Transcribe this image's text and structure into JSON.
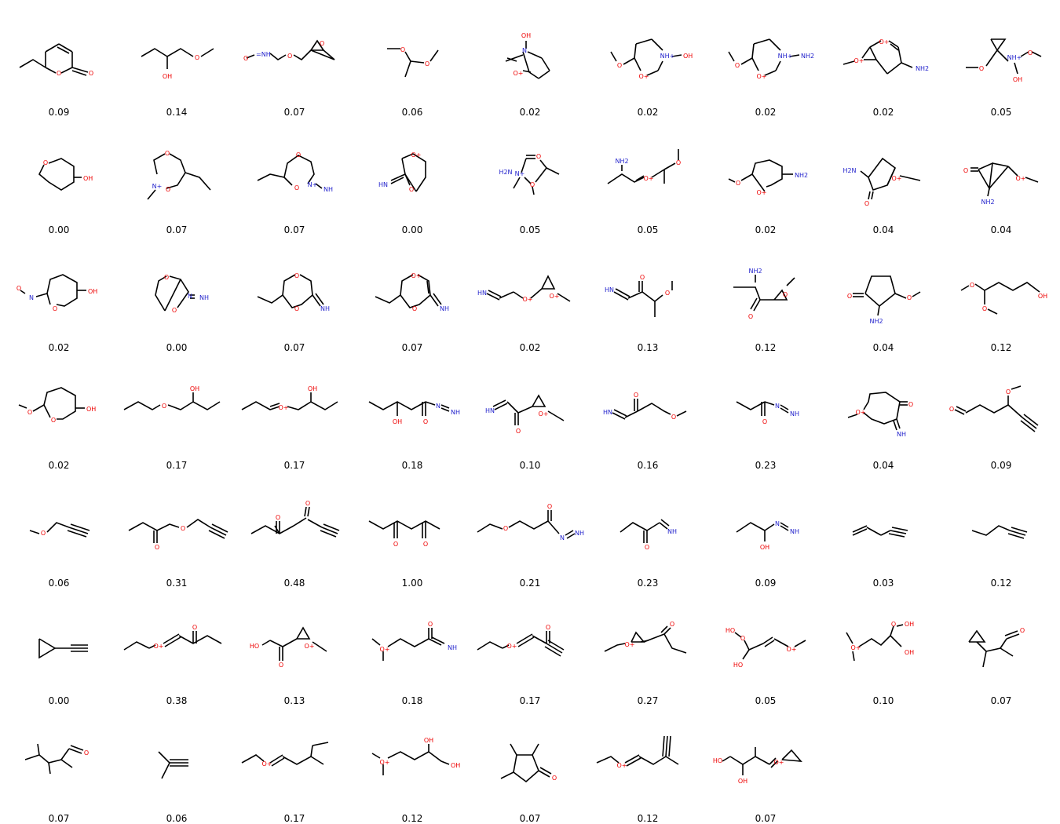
{
  "grid": {
    "columns": 9,
    "molecules": [
      {
        "score": "0.09",
        "structure": "6-ethyl-5,6-dihydro-2H-pyran-2-one"
      },
      {
        "score": "0.14",
        "structure": "1-methoxybutan-2-ol"
      },
      {
        "score": "0.07",
        "structure": "nitroso-methyl oxiranylmethyl ether"
      },
      {
        "score": "0.06",
        "structure": "1,1-dimethoxyethane"
      },
      {
        "score": "0.02",
        "structure": "bicyclic N-hydroxy oxazinane"
      },
      {
        "score": "0.02",
        "structure": "methoxy oxazinane N-OH"
      },
      {
        "score": "0.02",
        "structure": "methoxy oxazinane N-NH2"
      },
      {
        "score": "0.02",
        "structure": "bicyclic amino dioxane"
      },
      {
        "score": "0.05",
        "structure": "cyclopropyl methoxy hydroxylamine"
      },
      {
        "score": "0.00",
        "structure": "tetrahydropyran-3-ol"
      },
      {
        "score": "0.07",
        "structure": "ethyl oxadiazinane methylene"
      },
      {
        "score": "0.07",
        "structure": "ethyl oxadiazinane imine"
      },
      {
        "score": "0.00",
        "structure": "bicyclic epoxy lactim"
      },
      {
        "score": "0.05",
        "structure": "amino methyl oxazetidine"
      },
      {
        "score": "0.05",
        "structure": "aminopropyl oxonium ether"
      },
      {
        "score": "0.02",
        "structure": "methoxy amino dihydropyran"
      },
      {
        "score": "0.04",
        "structure": "amino epoxy cyclopentanone"
      },
      {
        "score": "0.04",
        "structure": "amino bicyclic epoxy ketone"
      },
      {
        "score": "0.02",
        "structure": "N-nitroso tetrahydropyranol"
      },
      {
        "score": "0.00",
        "structure": "bicyclic dioxazine imine"
      },
      {
        "score": "0.07",
        "structure": "ethyl dioxane imine"
      },
      {
        "score": "0.07",
        "structure": "ethyl dioxinium imine"
      },
      {
        "score": "0.02",
        "structure": "imino vinyl epoxide"
      },
      {
        "score": "0.13",
        "structure": "imino methoxy butanone"
      },
      {
        "score": "0.12",
        "structure": "amino epoxy ketone"
      },
      {
        "score": "0.04",
        "structure": "amino methoxy cyclopentanone"
      },
      {
        "score": "0.12",
        "structure": "4,4-dimethoxybutan-1-ol"
      },
      {
        "score": "0.02",
        "structure": "methoxy tetrahydropyranol"
      },
      {
        "score": "0.17",
        "structure": "1-propoxybutan-2-ol"
      },
      {
        "score": "0.17",
        "structure": "propenyl oxonium butanol"
      },
      {
        "score": "0.18",
        "structure": "hydroxy diazenyl ketone"
      },
      {
        "score": "0.10",
        "structure": "imino epoxy ketone"
      },
      {
        "score": "0.16",
        "structure": "imino methoxy butanone"
      },
      {
        "score": "0.23",
        "structure": "propanoyl diazene"
      },
      {
        "score": "0.04",
        "structure": "methoxy imino pyranone"
      },
      {
        "score": "0.09",
        "structure": "methoxy hexynal"
      },
      {
        "score": "0.06",
        "structure": "methyl propargyl ether"
      },
      {
        "score": "0.31",
        "structure": "propargyloxy butanone"
      },
      {
        "score": "0.48",
        "structure": "hept-1-yne-3,5-dione"
      },
      {
        "score": "1.00",
        "structure": "heptane-3,5-dione"
      },
      {
        "score": "0.21",
        "structure": "ethoxy propanoyl diazene"
      },
      {
        "score": "0.23",
        "structure": "imino butanone"
      },
      {
        "score": "0.09",
        "structure": "diazenyl propanol"
      },
      {
        "score": "0.03",
        "structure": "pent-1-en-4-yne"
      },
      {
        "score": "0.12",
        "structure": "pent-1-yne"
      },
      {
        "score": "0.00",
        "structure": "ethynylcyclopropane"
      },
      {
        "score": "0.38",
        "structure": "ethyl oxonium vinyl ketone"
      },
      {
        "score": "0.13",
        "structure": "hydroxyacetyl epoxide"
      },
      {
        "score": "0.18",
        "structure": "dimethyl oxonium imino ketone"
      },
      {
        "score": "0.17",
        "structure": "ethyl oxonium ynone"
      },
      {
        "score": "0.27",
        "structure": "ethoxy epoxy ketone"
      },
      {
        "score": "0.05",
        "structure": "hydroperoxy oxonium diol"
      },
      {
        "score": "0.10",
        "structure": "dimethyl oxonium hydroperoxy"
      },
      {
        "score": "0.07",
        "structure": "cyclopropyl methyl aldehyde"
      },
      {
        "score": "0.07",
        "structure": "trimethyl hexanal"
      },
      {
        "score": "0.06",
        "structure": "3-methylbut-1-yne"
      },
      {
        "score": "0.17",
        "structure": "ethyl oxonium methyl hexene"
      },
      {
        "score": "0.12",
        "structure": "dimethyl oxonium butanediol"
      },
      {
        "score": "0.07",
        "structure": "trimethylcyclopentanone"
      },
      {
        "score": "0.12",
        "structure": "ethyl oxonium methyl alkyne"
      },
      {
        "score": "0.07",
        "structure": "epoxy oxonium butanediol"
      }
    ]
  }
}
